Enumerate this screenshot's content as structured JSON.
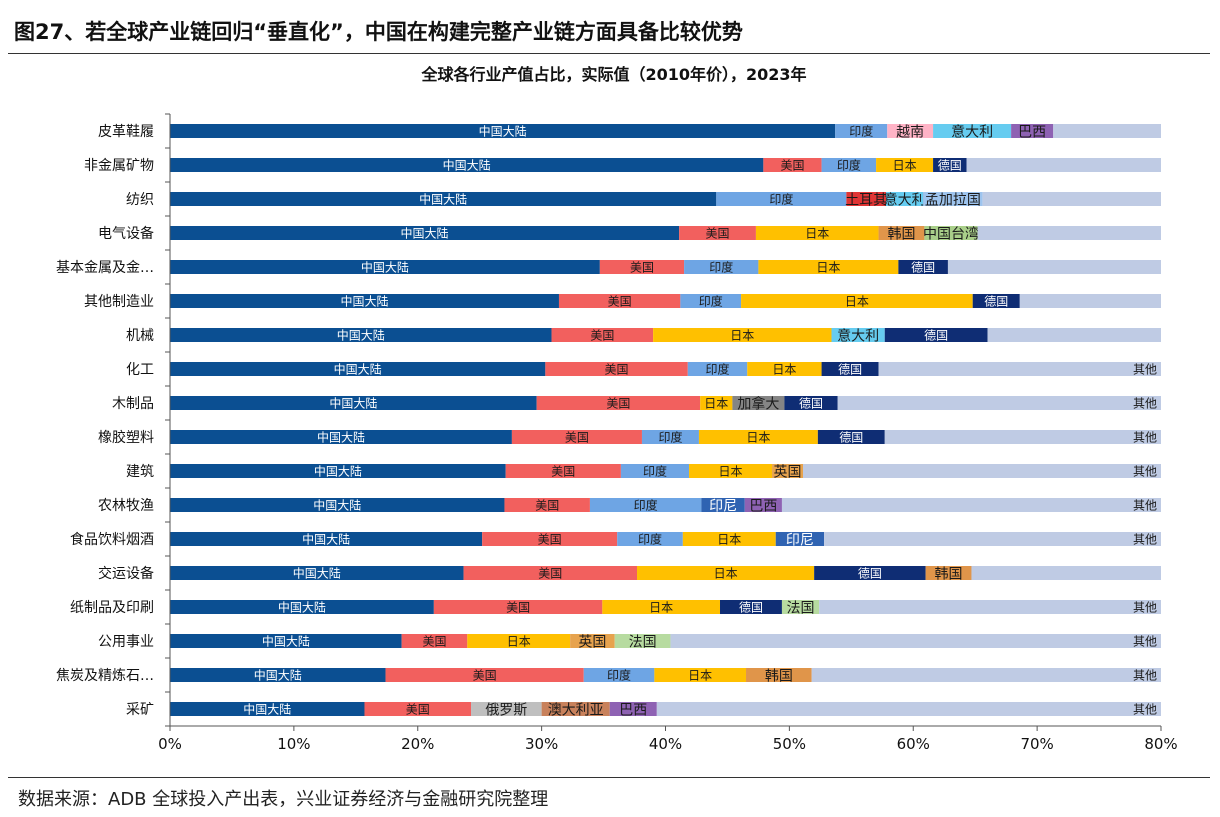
{
  "figure": {
    "title": "图27、若全球产业链回归“垂直化”，中国在构建完整产业链方面具备比较优势",
    "source": "数据来源：ADB 全球投入产出表，兴业证券经济与金融研究院整理"
  },
  "colors": {
    "中国大陆": "#0b4f92",
    "美国": "#f2605e",
    "印度": "#6ea5e4",
    "日本": "#ffc000",
    "德国": "#0f2d74",
    "越南": "#ffb3c6",
    "意大利": "#66ccf0",
    "巴西": "#8e62b3",
    "土耳其": "#e03535",
    "孟加拉国": "#9ec4ee",
    "韩国": "#e0954a",
    "中国台湾": "#a9cf8a",
    "加拿大": "#858585",
    "英国": "#e7a34e",
    "印尼": "#2f63b2",
    "法国": "#b7dba0",
    "俄罗斯": "#bfbfbf",
    "澳大利亚": "#c8815b",
    "其他": "#bfcbe4"
  },
  "chart_data": {
    "type": "bar",
    "orientation": "horizontal",
    "stacked": true,
    "title": "全球各行业产值占比，实际值（2010年价），2023年",
    "xlabel": "",
    "ylabel": "",
    "xlim": [
      0,
      0.8
    ],
    "x_ticks": [
      "0%",
      "10%",
      "20%",
      "30%",
      "40%",
      "50%",
      "60%",
      "70%",
      "80%"
    ],
    "grid": false,
    "legend": "none",
    "categories": [
      "皮革鞋履",
      "非金属矿物",
      "纺织",
      "电气设备",
      "基本金属及金…",
      "其他制造业",
      "机械",
      "化工",
      "木制品",
      "橡胶塑料",
      "建筑",
      "农林牧渔",
      "食品饮料烟酒",
      "交运设备",
      "纸制品及印刷",
      "公用事业",
      "焦炭及精炼石…",
      "采矿"
    ],
    "rows": [
      {
        "segments": [
          [
            "中国大陆",
            0.537
          ],
          [
            "印度",
            0.042
          ],
          [
            "越南",
            0.037
          ],
          [
            "意大利",
            0.063
          ],
          [
            "巴西",
            0.034
          ],
          [
            "其他",
            0.087
          ]
        ],
        "show_other_label": false
      },
      {
        "segments": [
          [
            "中国大陆",
            0.479
          ],
          [
            "美国",
            0.047
          ],
          [
            "印度",
            0.044
          ],
          [
            "日本",
            0.046
          ],
          [
            "德国",
            0.027
          ],
          [
            "其他",
            0.157
          ]
        ],
        "show_other_label": false
      },
      {
        "segments": [
          [
            "中国大陆",
            0.441
          ],
          [
            "印度",
            0.105
          ],
          [
            "土耳其",
            0.032
          ],
          [
            "意大利",
            0.03
          ],
          [
            "孟加拉国",
            0.048
          ],
          [
            "其他",
            0.144
          ]
        ],
        "show_other_label": false
      },
      {
        "segments": [
          [
            "中国大陆",
            0.411
          ],
          [
            "美国",
            0.062
          ],
          [
            "日本",
            0.099
          ],
          [
            "韩国",
            0.037
          ],
          [
            "中国台湾",
            0.043
          ],
          [
            "其他",
            0.148
          ]
        ],
        "show_other_label": false
      },
      {
        "segments": [
          [
            "中国大陆",
            0.347
          ],
          [
            "美国",
            0.068
          ],
          [
            "印度",
            0.06
          ],
          [
            "日本",
            0.113
          ],
          [
            "德国",
            0.04
          ],
          [
            "其他",
            0.172
          ]
        ],
        "show_other_label": false
      },
      {
        "segments": [
          [
            "中国大陆",
            0.314
          ],
          [
            "美国",
            0.098
          ],
          [
            "印度",
            0.049
          ],
          [
            "日本",
            0.187
          ],
          [
            "德国",
            0.038
          ],
          [
            "其他",
            0.114
          ]
        ],
        "show_other_label": false
      },
      {
        "segments": [
          [
            "中国大陆",
            0.308
          ],
          [
            "美国",
            0.082
          ],
          [
            "日本",
            0.144
          ],
          [
            "意大利",
            0.043
          ],
          [
            "德国",
            0.083
          ],
          [
            "其他",
            0.14
          ]
        ],
        "show_other_label": false
      },
      {
        "segments": [
          [
            "中国大陆",
            0.303
          ],
          [
            "美国",
            0.115
          ],
          [
            "印度",
            0.048
          ],
          [
            "日本",
            0.06
          ],
          [
            "德国",
            0.046
          ],
          [
            "其他",
            0.228
          ]
        ],
        "show_other_label": true
      },
      {
        "segments": [
          [
            "中国大陆",
            0.296
          ],
          [
            "美国",
            0.132
          ],
          [
            "日本",
            0.026
          ],
          [
            "加拿大",
            0.042
          ],
          [
            "德国",
            0.043
          ],
          [
            "其他",
            0.261
          ]
        ],
        "show_other_label": true
      },
      {
        "segments": [
          [
            "中国大陆",
            0.276
          ],
          [
            "美国",
            0.105
          ],
          [
            "印度",
            0.046
          ],
          [
            "日本",
            0.096
          ],
          [
            "德国",
            0.054
          ],
          [
            "其他",
            0.223
          ]
        ],
        "show_other_label": true
      },
      {
        "segments": [
          [
            "中国大陆",
            0.271
          ],
          [
            "美国",
            0.093
          ],
          [
            "印度",
            0.055
          ],
          [
            "日本",
            0.067
          ],
          [
            "英国",
            0.025
          ],
          [
            "其他",
            0.289
          ]
        ],
        "show_other_label": true
      },
      {
        "segments": [
          [
            "中国大陆",
            0.27
          ],
          [
            "美国",
            0.069
          ],
          [
            "印度",
            0.09
          ],
          [
            "印尼",
            0.035
          ],
          [
            "巴西",
            0.03
          ],
          [
            "其他",
            0.306
          ]
        ],
        "show_other_label": true
      },
      {
        "segments": [
          [
            "中国大陆",
            0.252
          ],
          [
            "美国",
            0.109
          ],
          [
            "印度",
            0.053
          ],
          [
            "日本",
            0.075
          ],
          [
            "印尼",
            0.039
          ],
          [
            "其他",
            0.272
          ]
        ],
        "show_other_label": true
      },
      {
        "segments": [
          [
            "中国大陆",
            0.237
          ],
          [
            "美国",
            0.14
          ],
          [
            "日本",
            0.143
          ],
          [
            "德国",
            0.09
          ],
          [
            "韩国",
            0.037
          ],
          [
            "其他",
            0.153
          ]
        ],
        "show_other_label": false
      },
      {
        "segments": [
          [
            "中国大陆",
            0.213
          ],
          [
            "美国",
            0.136
          ],
          [
            "日本",
            0.095
          ],
          [
            "德国",
            0.05
          ],
          [
            "法国",
            0.03
          ],
          [
            "其他",
            0.276
          ]
        ],
        "show_other_label": true
      },
      {
        "segments": [
          [
            "中国大陆",
            0.187
          ],
          [
            "美国",
            0.053
          ],
          [
            "日本",
            0.083
          ],
          [
            "英国",
            0.036
          ],
          [
            "法国",
            0.045
          ],
          [
            "其他",
            0.396
          ]
        ],
        "show_other_label": true
      },
      {
        "segments": [
          [
            "中国大陆",
            0.174
          ],
          [
            "美国",
            0.16
          ],
          [
            "印度",
            0.057
          ],
          [
            "日本",
            0.074
          ],
          [
            "韩国",
            0.053
          ],
          [
            "其他",
            0.282
          ]
        ],
        "show_other_label": true
      },
      {
        "segments": [
          [
            "中国大陆",
            0.157
          ],
          [
            "美国",
            0.086
          ],
          [
            "俄罗斯",
            0.057
          ],
          [
            "澳大利亚",
            0.055
          ],
          [
            "巴西",
            0.038
          ],
          [
            "其他",
            0.407
          ]
        ],
        "show_other_label": true
      }
    ]
  }
}
